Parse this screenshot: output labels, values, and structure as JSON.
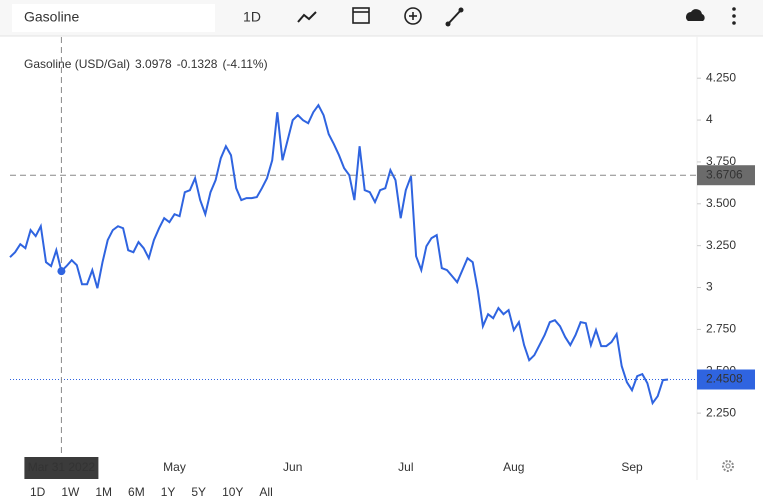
{
  "toolbar": {
    "symbol": "Gasoline",
    "interval": "1D"
  },
  "ranges": [
    "1D",
    "1W",
    "1M",
    "6M",
    "1Y",
    "5Y",
    "10Y",
    "All"
  ],
  "active_range": "6M",
  "chart_data": {
    "type": "line",
    "change": "-0.1328",
    "change_pct": "(-4.11%)",
    "crosshair_y": 3.6706,
    "categories": [
      null,
      null,
      null,
      null,
      null,
      null,
      null,
      null,
      null,
      null,
      "Mar 31 2022",
      null,
      null,
      null,
      null,
      null,
      null,
      null,
      null,
      null,
      null,
      null,
      null,
      null,
      null,
      null,
      null,
      null,
      null,
      null,
      null,
      null,
      "May",
      null,
      null,
      null,
      null,
      null,
      null,
      null,
      null,
      null,
      null,
      null,
      null,
      null,
      null,
      null,
      null,
      null,
      null,
      null,
      null,
      null,
      null,
      "Jun",
      null,
      null,
      null,
      null,
      null,
      null,
      null,
      null,
      null,
      null,
      null,
      null,
      null,
      null,
      null,
      null,
      null,
      null,
      null,
      null,
      null,
      "Jul",
      null,
      null,
      null,
      null,
      null,
      null,
      null,
      null,
      null,
      null,
      null,
      null,
      null,
      null,
      null,
      null,
      null,
      null,
      null,
      null,
      "Aug",
      null,
      null,
      null,
      null,
      null,
      null,
      null,
      null,
      null,
      null,
      null,
      null,
      null,
      null,
      null,
      null,
      null,
      null,
      null,
      null,
      null,
      null,
      "Sep",
      null,
      null,
      null,
      null,
      null,
      null,
      null
    ],
    "series": [
      {
        "name": "Gasoline (USD/Gal)",
        "color": "#2f64e0",
        "values": [
          3.181,
          3.211,
          3.259,
          3.235,
          3.343,
          3.307,
          3.366,
          3.151,
          3.128,
          3.223,
          3.0978,
          3.128,
          3.163,
          3.134,
          3.02,
          3.02,
          3.104,
          2.996,
          3.151,
          3.283,
          3.343,
          3.366,
          3.354,
          3.223,
          3.211,
          3.271,
          3.235,
          3.175,
          3.283,
          3.354,
          3.414,
          3.39,
          3.438,
          3.426,
          3.569,
          3.581,
          3.653,
          3.522,
          3.438,
          3.569,
          3.641,
          3.772,
          3.844,
          3.79,
          3.593,
          3.522,
          3.534,
          3.534,
          3.54,
          3.593,
          3.653,
          3.76,
          4.047,
          3.76,
          3.88,
          3.999,
          4.029,
          3.999,
          3.981,
          4.047,
          4.089,
          4.029,
          3.916,
          3.856,
          3.79,
          3.713,
          3.671,
          3.522,
          3.844,
          3.581,
          3.569,
          3.51,
          3.581,
          3.593,
          3.701,
          3.641,
          3.414,
          3.581,
          3.665,
          3.187,
          3.104,
          3.247,
          3.295,
          3.313,
          3.116,
          3.104,
          3.068,
          3.032,
          3.104,
          3.175,
          3.151,
          2.984,
          2.769,
          2.841,
          2.817,
          2.877,
          2.841,
          2.865,
          2.746,
          2.793,
          2.656,
          2.566,
          2.596,
          2.656,
          2.716,
          2.793,
          2.805,
          2.769,
          2.704,
          2.656,
          2.716,
          2.793,
          2.787,
          2.656,
          2.746,
          2.65,
          2.65,
          2.674,
          2.722,
          2.531,
          2.435,
          2.387,
          2.471,
          2.483,
          2.429,
          2.31,
          2.351,
          2.447,
          2.4508
        ]
      }
    ],
    "ylim": [
      2.0,
      4.49
    ],
    "yticks": [
      {
        "value": 2.25,
        "label": "2.250"
      },
      {
        "value": 2.5,
        "label": "2.500"
      },
      {
        "value": 2.75,
        "label": "2.750"
      },
      3,
      {
        "value": 3.25,
        "label": "3.250"
      },
      {
        "value": 3.5,
        "label": "3.500"
      },
      {
        "value": 3.75,
        "label": "3.750"
      },
      4,
      {
        "value": 4.25,
        "label": "4.250"
      }
    ],
    "grid": false
  }
}
